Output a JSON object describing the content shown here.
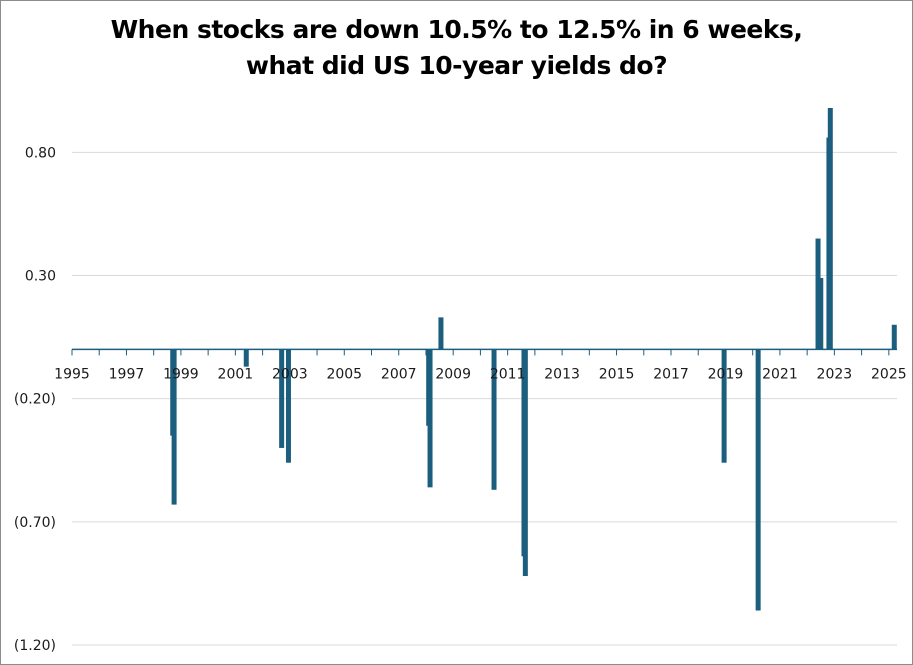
{
  "chart_data": {
    "type": "bar",
    "title_lines": [
      "When stocks are down 10.5% to 12.5% in 6 weeks,",
      "what did US 10-year yields do?"
    ],
    "xlabel": "",
    "ylabel": "",
    "xlim": [
      1995,
      2025.3
    ],
    "ylim": [
      -1.2,
      0.98
    ],
    "x_ticks": [
      {
        "value": 1995,
        "label": "1995"
      },
      {
        "value": 1997,
        "label": "1997"
      },
      {
        "value": 1999,
        "label": "1999"
      },
      {
        "value": 2001,
        "label": "2001"
      },
      {
        "value": 2003,
        "label": "2003"
      },
      {
        "value": 2005,
        "label": "2005"
      },
      {
        "value": 2007,
        "label": "2007"
      },
      {
        "value": 2009,
        "label": "2009"
      },
      {
        "value": 2011,
        "label": "2011"
      },
      {
        "value": 2013,
        "label": "2013"
      },
      {
        "value": 2015,
        "label": "2015"
      },
      {
        "value": 2017,
        "label": "2017"
      },
      {
        "value": 2019,
        "label": "2019"
      },
      {
        "value": 2021,
        "label": "2021"
      },
      {
        "value": 2023,
        "label": "2023"
      },
      {
        "value": 2025,
        "label": "2025"
      }
    ],
    "y_ticks": [
      {
        "value": 0.8,
        "label": "0.80"
      },
      {
        "value": 0.3,
        "label": "0.30"
      },
      {
        "value": -0.2,
        "label": "(0.20)"
      },
      {
        "value": -0.7,
        "label": "(0.70)"
      },
      {
        "value": -1.2,
        "label": "(1.20)"
      }
    ],
    "grid": "horizontal",
    "bar_color": "#1b5e7e",
    "axis_color": "#1b5e7e",
    "series": [
      {
        "x": [
          1998.7,
          1998.75,
          2001.4,
          2002.7,
          2002.95,
          2008.1,
          2008.15,
          2008.55,
          2010.5,
          2011.6,
          2011.65,
          2018.95,
          2020.2,
          2022.4,
          2022.5,
          2022.8,
          2022.85,
          2025.2
        ],
        "values": [
          -0.35,
          -0.63,
          -0.07,
          -0.4,
          -0.46,
          -0.31,
          -0.56,
          0.13,
          -0.57,
          -0.84,
          -0.92,
          -0.46,
          -1.06,
          0.45,
          0.29,
          0.86,
          0.98,
          0.1
        ]
      }
    ]
  }
}
